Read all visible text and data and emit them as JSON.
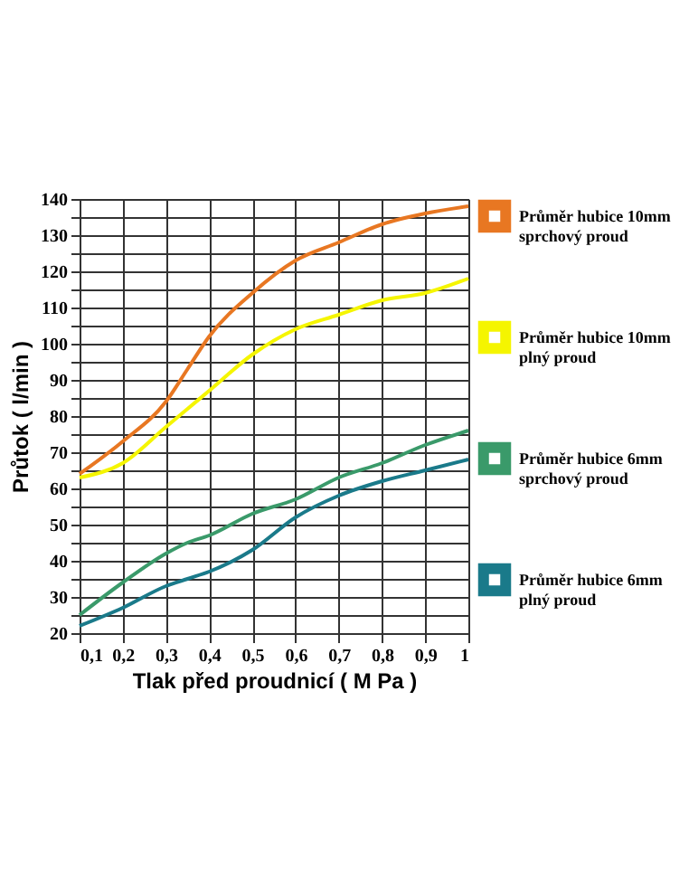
{
  "chart_data": {
    "type": "line",
    "xlabel": "Tlak před proudnicí  ( M Pa )",
    "ylabel": "Průtok  ( l/min )",
    "xlim": [
      0.1,
      1
    ],
    "ylim": [
      20,
      140
    ],
    "xticks": [
      {
        "value": 0.1,
        "label": "0,1"
      },
      {
        "value": 0.2,
        "label": "0,2"
      },
      {
        "value": 0.3,
        "label": "0,3"
      },
      {
        "value": 0.4,
        "label": "0,4"
      },
      {
        "value": 0.5,
        "label": "0,5"
      },
      {
        "value": 0.6,
        "label": "0,6"
      },
      {
        "value": 0.7,
        "label": "0,7"
      },
      {
        "value": 0.8,
        "label": "0,8"
      },
      {
        "value": 0.9,
        "label": "0,9"
      },
      1
    ],
    "yticks": [
      20,
      {
        "value": 25,
        "label": null
      },
      30,
      {
        "value": 35,
        "label": null
      },
      40,
      {
        "value": 45,
        "label": null
      },
      50,
      {
        "value": 55,
        "label": null
      },
      60,
      {
        "value": 65,
        "label": null
      },
      70,
      {
        "value": 75,
        "label": null
      },
      80,
      {
        "value": 85,
        "label": null
      },
      90,
      {
        "value": 95,
        "label": null
      },
      100,
      {
        "value": 105,
        "label": null
      },
      110,
      {
        "value": 115,
        "label": null
      },
      120,
      {
        "value": 125,
        "label": null
      },
      130,
      {
        "value": 135,
        "label": null
      },
      140
    ],
    "x": [
      0.1,
      0.2,
      0.3,
      0.35,
      0.4,
      0.5,
      0.6,
      0.7,
      0.8,
      0.9,
      1.0
    ],
    "series": [
      {
        "name": "Průměr hubice 10mm sprchový proud",
        "color": "#e87722",
        "values": [
          64,
          73,
          84,
          93,
          102,
          114,
          123,
          128,
          133,
          136,
          138
        ]
      },
      {
        "name": "Průměr hubice 10mm plný proud",
        "color": "#f5f500",
        "values": [
          63,
          67,
          77,
          82,
          87,
          97,
          104,
          108,
          112,
          114,
          118
        ]
      },
      {
        "name": "Průměr hubice 6mm sprchový proud",
        "color": "#3a9a6a",
        "values": [
          25,
          34,
          42,
          45,
          47,
          53,
          57,
          63,
          67,
          72,
          76
        ]
      },
      {
        "name": "Průměr hubice 6mm plný proud",
        "color": "#1a7a8a",
        "values": [
          22,
          27,
          33,
          35,
          37,
          43,
          52,
          58,
          62,
          65,
          68
        ]
      }
    ],
    "grid": true,
    "legend": "right",
    "marker": "none",
    "line_style": "solid"
  }
}
